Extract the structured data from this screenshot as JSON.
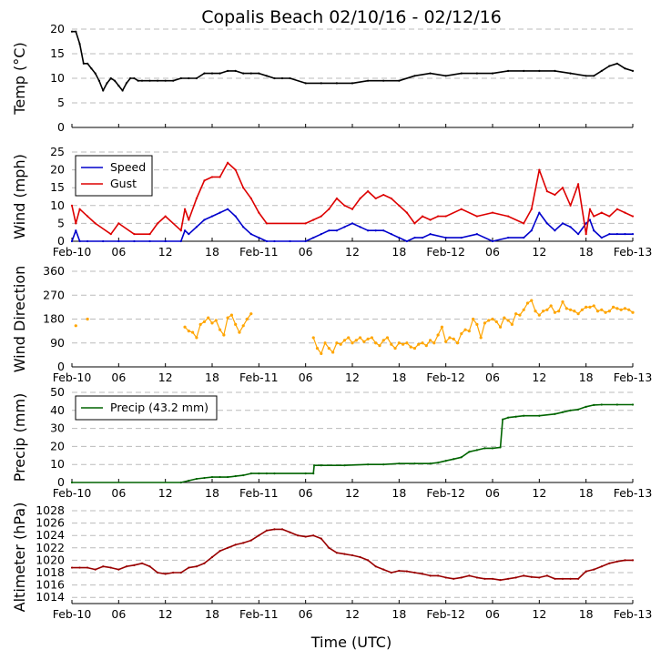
{
  "title": "Copalis Beach 02/10/16 - 02/12/16",
  "xlabel": "Time (UTC)",
  "x_ticks": [
    "Feb-10",
    "06",
    "12",
    "18",
    "Feb-11",
    "06",
    "12",
    "18",
    "Feb-12",
    "06",
    "12",
    "18",
    "Feb-13"
  ],
  "x_range_hours": [
    0,
    72
  ],
  "chart_data": [
    {
      "type": "line",
      "ylabel": "Temp ($^\\circ$C)",
      "ylabel_display": "Temp (°C)",
      "ylim": [
        0,
        20
      ],
      "yticks": [
        0,
        5,
        10,
        15,
        20
      ],
      "grid": true,
      "color": "#000000",
      "series": [
        {
          "x": [
            0,
            0.5,
            1,
            1.5,
            2,
            2.5,
            3,
            3.5,
            4,
            4.5,
            5,
            5.5,
            6,
            6.5,
            7,
            7.5,
            8,
            8.5,
            9,
            10,
            11,
            12,
            13,
            14,
            15,
            16,
            17,
            18,
            19,
            20,
            21,
            22,
            23,
            24,
            25,
            26,
            27,
            28,
            30,
            32,
            34,
            36,
            38,
            40,
            42,
            44,
            46,
            48,
            50,
            52,
            54,
            56,
            58,
            60,
            62,
            64,
            66,
            67,
            68,
            69,
            70,
            71,
            72
          ],
          "values": [
            19.5,
            19.5,
            17,
            13,
            13,
            12,
            11,
            9.5,
            7.5,
            9,
            10,
            9.5,
            8.5,
            7.5,
            9,
            10,
            10,
            9.5,
            9.5,
            9.5,
            9.5,
            9.5,
            9.5,
            10,
            10,
            10,
            11,
            11,
            11,
            11.5,
            11.5,
            11,
            11,
            11,
            10.5,
            10,
            10,
            10,
            9,
            9,
            9,
            9,
            9.5,
            9.5,
            9.5,
            10.5,
            11,
            10.5,
            11,
            11,
            11,
            11.5,
            11.5,
            11.5,
            11.5,
            11,
            10.5,
            10.5,
            11.5,
            12.5,
            13,
            12,
            11.5
          ]
        }
      ]
    },
    {
      "type": "line",
      "ylabel": "Wind (mph)",
      "ylim": [
        0,
        25
      ],
      "yticks": [
        0,
        5,
        10,
        15,
        20,
        25
      ],
      "grid": true,
      "legend": "upper-left",
      "series": [
        {
          "name": "Speed",
          "color": "#0000cc",
          "x": [
            0,
            0.5,
            1,
            2,
            4,
            6,
            8,
            10,
            12,
            14,
            14.5,
            15,
            16,
            17,
            18,
            19,
            20,
            21,
            22,
            23,
            24,
            25,
            26,
            28,
            30,
            31,
            32,
            33,
            34,
            35,
            36,
            37,
            38,
            39,
            40,
            41,
            42,
            43,
            44,
            45,
            46,
            48,
            50,
            52,
            54,
            56,
            58,
            59,
            60,
            61,
            62,
            63,
            64,
            65,
            66,
            66.5,
            67,
            68,
            69,
            70,
            71,
            72
          ],
          "values": [
            0,
            3,
            0,
            0,
            0,
            0,
            0,
            0,
            0,
            0,
            3,
            2,
            4,
            6,
            7,
            8,
            9,
            7,
            4,
            2,
            1,
            0,
            0,
            0,
            0,
            1,
            2,
            3,
            3,
            4,
            5,
            4,
            3,
            3,
            3,
            2,
            1,
            0,
            1,
            1,
            2,
            1,
            1,
            2,
            0,
            1,
            1,
            3,
            8,
            5,
            3,
            5,
            4,
            2,
            5,
            6,
            3,
            1,
            2,
            2,
            2,
            2
          ]
        },
        {
          "name": "Gust",
          "color": "#dd0000",
          "x": [
            0,
            0.5,
            1,
            2,
            3,
            5,
            6,
            8,
            10,
            11,
            12,
            14,
            14.5,
            15,
            16,
            17,
            18,
            19,
            20,
            21,
            22,
            23,
            24,
            25,
            30,
            31,
            32,
            33,
            34,
            35,
            36,
            37,
            38,
            39,
            40,
            41,
            42,
            43,
            44,
            45,
            46,
            47,
            48,
            50,
            52,
            54,
            56,
            58,
            59,
            60,
            61,
            62,
            63,
            64,
            65,
            66,
            66.5,
            67,
            68,
            69,
            70,
            71,
            72
          ],
          "values": [
            10,
            5,
            9,
            7,
            5,
            2,
            5,
            2,
            2,
            5,
            7,
            3,
            9,
            6,
            12,
            17,
            18,
            18,
            22,
            20,
            15,
            12,
            8,
            5,
            5,
            6,
            7,
            9,
            12,
            10,
            9,
            12,
            14,
            12,
            13,
            12,
            10,
            8,
            5,
            7,
            6,
            7,
            7,
            9,
            7,
            8,
            7,
            5,
            9,
            20,
            14,
            13,
            15,
            10,
            16,
            2,
            9,
            7,
            8,
            7,
            9,
            8,
            7
          ]
        }
      ]
    },
    {
      "type": "scatter",
      "ylabel": "Wind Direction",
      "ylim": [
        0,
        360
      ],
      "yticks": [
        0,
        90,
        180,
        270,
        360
      ],
      "grid": true,
      "series": [
        {
          "color": "#ffa500",
          "x": [
            0.5,
            2,
            14.5,
            15,
            15.5,
            16,
            16.5,
            17,
            17.5,
            18,
            18.5,
            19,
            19.5,
            20,
            20.5,
            21,
            21.5,
            22,
            22.5,
            23,
            31,
            31.5,
            32,
            32.5,
            33,
            33.5,
            34,
            34.5,
            35,
            35.5,
            36,
            36.5,
            37,
            37.5,
            38,
            38.5,
            39,
            39.5,
            40,
            40.5,
            41,
            41.5,
            42,
            42.5,
            43,
            43.5,
            44,
            44.5,
            45,
            45.5,
            46,
            46.5,
            47,
            47.5,
            48,
            48.5,
            49,
            49.5,
            50,
            50.5,
            51,
            51.5,
            52,
            52.5,
            53,
            53.5,
            54,
            54.5,
            55,
            55.5,
            56,
            56.5,
            57,
            57.5,
            58,
            58.5,
            59,
            59.5,
            60,
            60.5,
            61,
            61.5,
            62,
            62.5,
            63,
            63.5,
            64,
            64.5,
            65,
            65.5,
            66,
            66.5,
            67,
            67.5,
            68,
            68.5,
            69,
            69.5,
            70,
            70.5,
            71,
            71.5,
            72
          ],
          "values": [
            155,
            180,
            150,
            135,
            130,
            110,
            160,
            170,
            185,
            165,
            175,
            140,
            120,
            185,
            195,
            160,
            130,
            155,
            180,
            200,
            110,
            70,
            50,
            90,
            70,
            55,
            90,
            85,
            100,
            110,
            90,
            100,
            110,
            95,
            105,
            110,
            90,
            80,
            100,
            110,
            85,
            70,
            90,
            85,
            90,
            75,
            70,
            85,
            90,
            80,
            100,
            90,
            120,
            150,
            95,
            110,
            105,
            90,
            125,
            140,
            135,
            180,
            160,
            110,
            165,
            175,
            180,
            170,
            150,
            185,
            175,
            160,
            200,
            195,
            215,
            240,
            250,
            210,
            195,
            210,
            215,
            230,
            205,
            210,
            245,
            220,
            215,
            210,
            200,
            215,
            225,
            225,
            230,
            210,
            215,
            205,
            210,
            225,
            220,
            215,
            220,
            215,
            205
          ]
        }
      ]
    },
    {
      "type": "line",
      "ylabel": "Precip (mm)",
      "ylim": [
        0,
        50
      ],
      "yticks": [
        0,
        10,
        20,
        30,
        40,
        50
      ],
      "grid": true,
      "legend": "upper-left",
      "series": [
        {
          "name": "Precip (43.2 mm)",
          "color": "#006400",
          "x": [
            0,
            14,
            15,
            16,
            17,
            18,
            19,
            20,
            21,
            22,
            23,
            24,
            25,
            26,
            30,
            31,
            31.1,
            32,
            35,
            38,
            40,
            42,
            44,
            46,
            47,
            48,
            49,
            50,
            51,
            52,
            53,
            54,
            55,
            55.3,
            56,
            57,
            58,
            60,
            62,
            63,
            64,
            65,
            66,
            67,
            68,
            70,
            72
          ],
          "values": [
            0,
            0,
            1,
            2,
            2.5,
            3,
            3,
            3,
            3.5,
            4,
            5,
            5,
            5,
            5,
            5,
            5,
            9.5,
            9.5,
            9.5,
            10,
            10,
            10.5,
            10.5,
            10.5,
            11,
            12,
            13,
            14,
            17,
            18,
            19,
            19,
            19.5,
            35,
            36,
            36.5,
            37,
            37,
            38,
            39,
            40,
            40.5,
            42,
            43,
            43.2,
            43.2,
            43.2
          ]
        }
      ]
    },
    {
      "type": "line",
      "ylabel": "Altimeter (hPa)",
      "ylim": [
        1013,
        1028
      ],
      "yticks": [
        1014,
        1016,
        1018,
        1020,
        1022,
        1024,
        1026,
        1028
      ],
      "grid": true,
      "color": "#990000",
      "series": [
        {
          "x": [
            0,
            1,
            2,
            3,
            4,
            5,
            6,
            7,
            8,
            9,
            10,
            11,
            12,
            13,
            14,
            15,
            16,
            17,
            18,
            19,
            20,
            21,
            22,
            23,
            24,
            25,
            26,
            27,
            28,
            29,
            30,
            31,
            32,
            33,
            34,
            35,
            36,
            37,
            38,
            39,
            40,
            41,
            42,
            43,
            44,
            45,
            46,
            47,
            48,
            49,
            50,
            51,
            52,
            53,
            54,
            55,
            56,
            57,
            58,
            59,
            60,
            61,
            62,
            63,
            64,
            65,
            66,
            67,
            68,
            69,
            70,
            71,
            72
          ],
          "values": [
            1018.8,
            1018.8,
            1018.8,
            1018.5,
            1019,
            1018.8,
            1018.5,
            1019,
            1019.2,
            1019.5,
            1019,
            1018,
            1017.8,
            1018,
            1018,
            1018.8,
            1019,
            1019.5,
            1020.5,
            1021.5,
            1022,
            1022.5,
            1022.8,
            1023.2,
            1024,
            1024.8,
            1025,
            1025,
            1024.5,
            1024,
            1023.8,
            1024,
            1023.5,
            1022,
            1021.2,
            1021,
            1020.8,
            1020.5,
            1020,
            1019,
            1018.5,
            1018,
            1018.3,
            1018.2,
            1018,
            1017.8,
            1017.5,
            1017.5,
            1017.2,
            1017,
            1017.2,
            1017.5,
            1017.2,
            1017,
            1017,
            1016.8,
            1017,
            1017.2,
            1017.5,
            1017.3,
            1017.2,
            1017.5,
            1017,
            1017,
            1017,
            1017,
            1018.2,
            1018.5,
            1019,
            1019.5,
            1019.8,
            1020,
            1020
          ]
        }
      ]
    }
  ]
}
